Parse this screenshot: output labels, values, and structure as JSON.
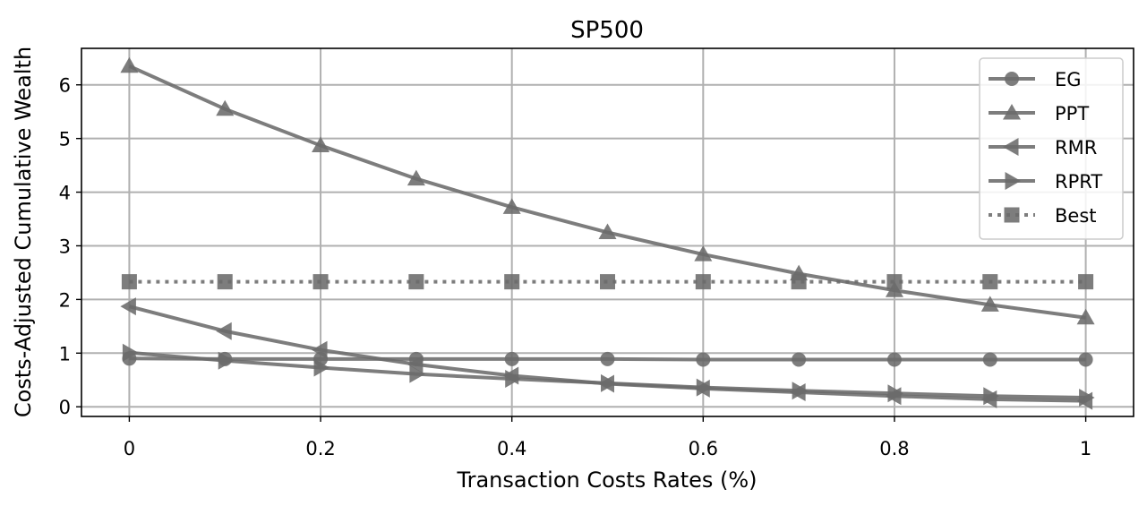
{
  "chart_data": {
    "type": "line",
    "title": "SP500",
    "xlabel": "Transaction Costs Rates (%)",
    "ylabel": "Costs-Adjusted Cumulative Wealth",
    "xlim": [
      -0.05,
      1.05
    ],
    "ylim": [
      -0.18,
      6.68
    ],
    "xticks": [
      0,
      0.2,
      0.4,
      0.6,
      0.8,
      1
    ],
    "xtick_labels": [
      "0",
      "0.2",
      "0.4",
      "0.6",
      "0.8",
      "1"
    ],
    "yticks": [
      0,
      1,
      2,
      3,
      4,
      5,
      6
    ],
    "ytick_labels": [
      "0",
      "1",
      "2",
      "3",
      "4",
      "5",
      "6"
    ],
    "grid": true,
    "legend_position": "top-right",
    "x": [
      0,
      0.1,
      0.2,
      0.3,
      0.4,
      0.5,
      0.6,
      0.7,
      0.8,
      0.9,
      1.0
    ],
    "series": [
      {
        "name": "EG",
        "marker": "circle",
        "line": "solid",
        "values": [
          0.9,
          0.89,
          0.89,
          0.89,
          0.89,
          0.89,
          0.88,
          0.88,
          0.88,
          0.88,
          0.88
        ]
      },
      {
        "name": "PPT",
        "marker": "triangle-up",
        "line": "solid",
        "values": [
          6.35,
          5.55,
          4.87,
          4.25,
          3.72,
          3.25,
          2.84,
          2.48,
          2.17,
          1.9,
          1.66
        ]
      },
      {
        "name": "RMR",
        "marker": "triangle-left",
        "line": "solid",
        "values": [
          1.87,
          1.41,
          1.06,
          0.79,
          0.58,
          0.43,
          0.34,
          0.27,
          0.2,
          0.14,
          0.11
        ]
      },
      {
        "name": "RPRT",
        "marker": "triangle-right",
        "line": "solid",
        "values": [
          1.01,
          0.86,
          0.73,
          0.61,
          0.52,
          0.44,
          0.36,
          0.3,
          0.25,
          0.2,
          0.17
        ]
      },
      {
        "name": "Best",
        "marker": "square",
        "line": "dotted",
        "values": [
          2.33,
          2.33,
          2.33,
          2.33,
          2.33,
          2.33,
          2.33,
          2.33,
          2.33,
          2.33,
          2.33
        ]
      }
    ],
    "colors": {
      "series": "#6b6b6b",
      "grid": "#b0b0b0",
      "axes": "#000000"
    }
  }
}
